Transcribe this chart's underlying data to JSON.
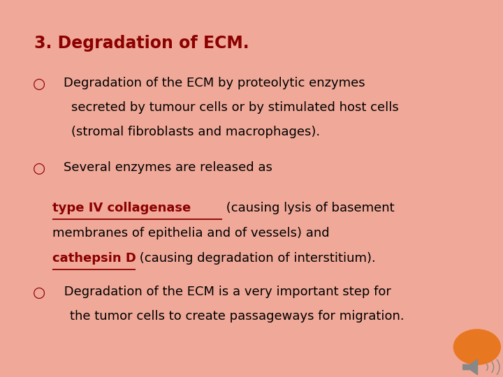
{
  "title": "3. Degradation of ECM.",
  "title_color": "#8B0000",
  "title_fontsize": 17,
  "background_color": "#FFFFFF",
  "border_color": "#F0A898",
  "text_color": "#000000",
  "red_color": "#8B0000",
  "bullet_symbol": "○",
  "bullet1_line1": "Degradation of the ECM by proteolytic enzymes",
  "bullet1_line2": "secreted by tumour cells or by stimulated host cells",
  "bullet1_line3": "(stromal fibroblasts and macrophages).",
  "bullet2": "Several enzymes are released as",
  "special_bold_underline1": "type IV collagenase",
  "special_text1": " (causing lysis of basement",
  "special_line2": "membranes of epithelia and of vessels) and",
  "special_bold_underline2": "cathepsin D",
  "special_text2": " (causing degradation of interstitium).",
  "bullet3_line1": " Degradation of the ECM is a very important step for",
  "bullet3_line2": "the tumor cells to create passageways for migration.",
  "orange_circle_color": "#E87722",
  "font_size": 13
}
